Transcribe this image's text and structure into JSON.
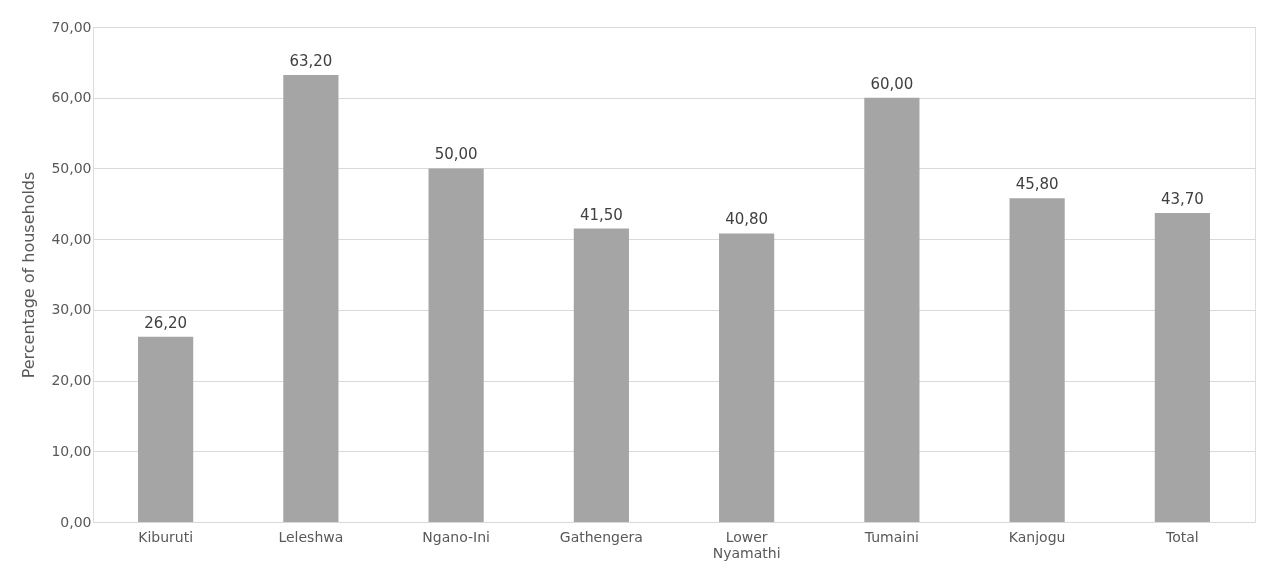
{
  "chart_data": {
    "type": "bar",
    "ylabel": "Percentage of households",
    "categories": [
      "Kiburuti",
      "Leleshwa",
      "Ngano-Ini",
      "Gathengera",
      "Lower Nyamathi",
      "Tumaini",
      "Kanjogu",
      "Total"
    ],
    "values": [
      26.2,
      63.2,
      50.0,
      41.5,
      40.8,
      60.0,
      45.8,
      43.7
    ],
    "value_labels": [
      "26,20",
      "63,20",
      "50,00",
      "41,50",
      "40,80",
      "60,00",
      "45,80",
      "43,70"
    ],
    "color": "#a5a5a5",
    "ylim": [
      0,
      70
    ],
    "yticks": [
      {
        "value": 0,
        "label": "0,00"
      },
      {
        "value": 10,
        "label": "10,00"
      },
      {
        "value": 20,
        "label": "20,00"
      },
      {
        "value": 30,
        "label": "30,00"
      },
      {
        "value": 40,
        "label": "40,00"
      },
      {
        "value": 50,
        "label": "50,00"
      },
      {
        "value": 60,
        "label": "60,00"
      },
      {
        "value": 70,
        "label": "70,00"
      }
    ],
    "grid": "y"
  }
}
